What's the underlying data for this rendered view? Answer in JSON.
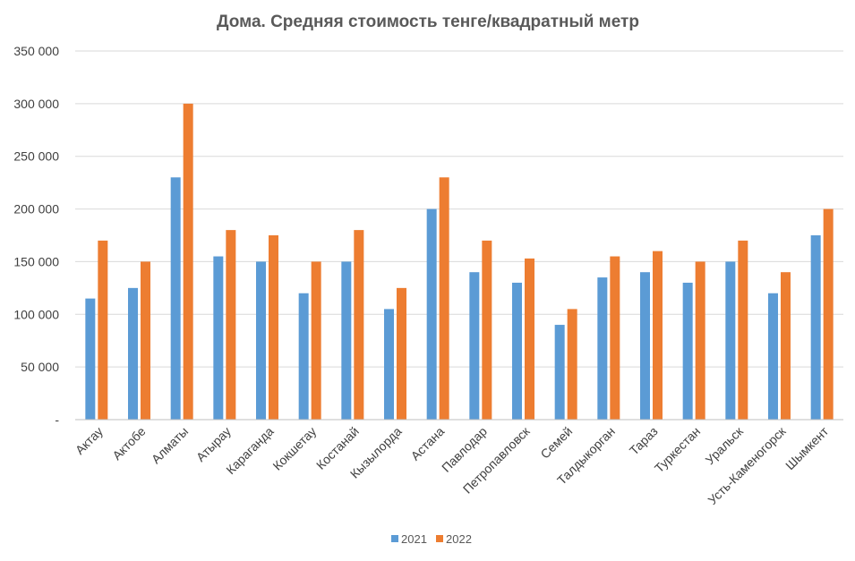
{
  "chart_data": {
    "type": "bar",
    "title": "Дома. Средняя стоимость тенге/квадратный метр",
    "xlabel": "",
    "ylabel": "",
    "ylim": [
      0,
      350000
    ],
    "yticks": [
      0,
      50000,
      100000,
      150000,
      200000,
      250000,
      300000,
      350000
    ],
    "ytick_labels": [
      "-",
      "50 000",
      "100 000",
      "150 000",
      "200 000",
      "250 000",
      "300 000",
      "350 000"
    ],
    "grid": true,
    "legend_position": "bottom",
    "categories": [
      "Актау",
      "Актобе",
      "Алматы",
      "Атырау",
      "Караганда",
      "Кокшетау",
      "Костанай",
      "Кызылорда",
      "Астана",
      "Павлодар",
      "Петропавловск",
      "Семей",
      "Талдыкорган",
      "Тараз",
      "Туркестан",
      "Уральск",
      "Усть-Каменогорск",
      "Шымкент"
    ],
    "series": [
      {
        "name": "2021",
        "color": "#5b9bd5",
        "values": [
          115000,
          125000,
          230000,
          155000,
          150000,
          120000,
          150000,
          105000,
          200000,
          140000,
          130000,
          90000,
          135000,
          140000,
          130000,
          150000,
          120000,
          175000
        ]
      },
      {
        "name": "2022",
        "color": "#ed7d31",
        "values": [
          170000,
          150000,
          300000,
          180000,
          175000,
          150000,
          180000,
          125000,
          230000,
          170000,
          153000,
          105000,
          155000,
          160000,
          150000,
          170000,
          140000,
          200000
        ]
      }
    ]
  }
}
